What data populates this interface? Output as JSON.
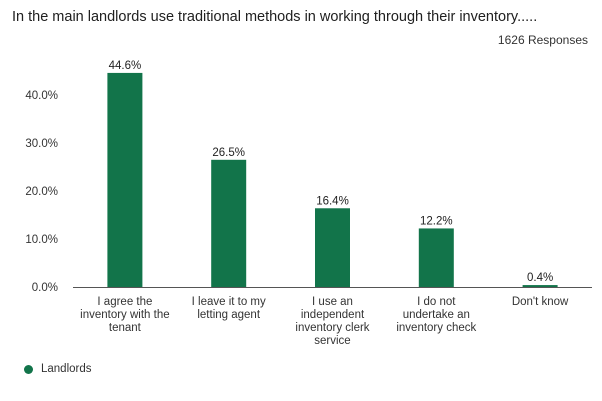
{
  "title": "In the main landlords use traditional methods in working through their inventory.....",
  "responses_label": "1626 Responses",
  "chart_data": {
    "type": "bar",
    "title": "In the main landlords use traditional methods in working through their inventory.....",
    "categories": [
      "I agree the inventory with the tenant",
      "I leave it to my letting agent",
      "I use an independent inventory clerk service",
      "I do not undertake an inventory check",
      "Don't know"
    ],
    "category_lines": [
      [
        "I agree the",
        "inventory with the",
        "tenant"
      ],
      [
        "I leave it to my",
        "letting agent"
      ],
      [
        "I use an",
        "independent",
        "inventory clerk",
        "service"
      ],
      [
        "I do not",
        "undertake an",
        "inventory check"
      ],
      [
        "Don't know"
      ]
    ],
    "series": [
      {
        "name": "Landlords",
        "values": [
          44.6,
          26.5,
          16.4,
          12.2,
          0.4
        ],
        "color": "#12744a"
      }
    ],
    "value_labels": [
      "44.6%",
      "26.5%",
      "16.4%",
      "12.2%",
      "0.4%"
    ],
    "yticks": [
      "0.0%",
      "10.0%",
      "20.0%",
      "30.0%",
      "40.0%"
    ],
    "ytick_values": [
      0,
      10,
      20,
      30,
      40
    ],
    "ylim": [
      0,
      45
    ],
    "grid": false,
    "legend": "bottom-left"
  }
}
